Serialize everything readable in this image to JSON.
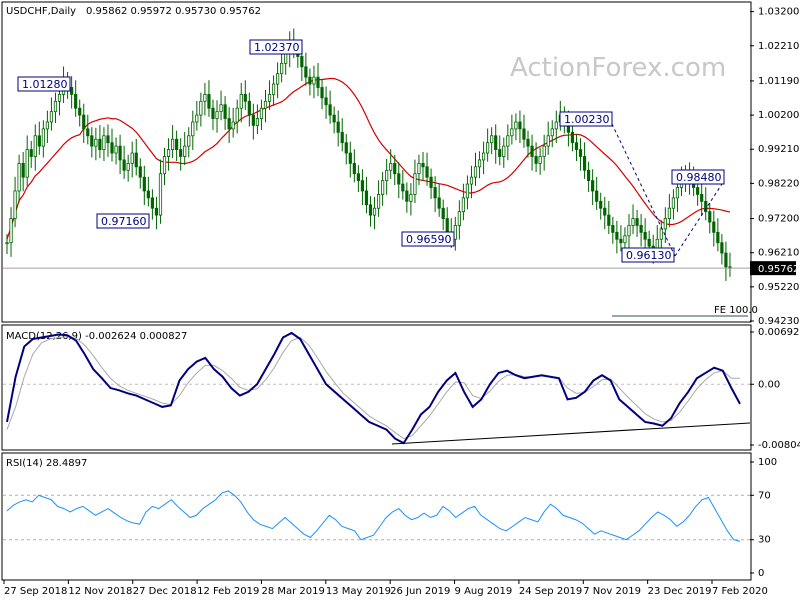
{
  "header": {
    "symbol": "USDCHF,Daily",
    "ohlc": "0.95862 0.95972 0.95730 0.95762"
  },
  "watermark": "ActionForex.com",
  "colors": {
    "candle": "#006400",
    "ma": "#d40000",
    "macd_main": "#000080",
    "macd_signal": "#a9a9a9",
    "rsi": "#1e90ff",
    "label_border": "#000080",
    "fe_line": "#2f4f4f",
    "price_box_bg": "#000000"
  },
  "chart_data": [
    {
      "type": "candlestick",
      "panel": "price",
      "title": "USDCHF,Daily 0.95862 0.95972 0.95730 0.95762",
      "ylim": [
        0.9423,
        1.0345
      ],
      "y_ticks": [
        "1.03200",
        "1.02210",
        "1.01190",
        "1.00200",
        "0.99210",
        "0.98220",
        "0.97200",
        "0.96210",
        "0.95220",
        "0.94230"
      ],
      "y_tick_values": [
        1.032,
        1.0221,
        1.0119,
        1.002,
        0.9921,
        0.9822,
        0.972,
        0.9621,
        0.9522,
        0.9423
      ],
      "current_price": "0.95762",
      "current_price_value": 0.95762,
      "close_series": [
        0.965,
        0.972,
        0.98,
        0.988,
        0.984,
        0.992,
        0.99,
        0.996,
        0.993,
        0.998,
        1.0,
        1.003,
        1.006,
        1.008,
        1.012,
        1.01,
        1.008,
        1.004,
        1.002,
        0.998,
        0.996,
        0.993,
        0.995,
        0.992,
        0.996,
        0.994,
        0.991,
        0.993,
        0.989,
        0.986,
        0.988,
        0.991,
        0.987,
        0.984,
        0.98,
        0.978,
        0.975,
        0.973,
        0.985,
        0.99,
        0.992,
        0.995,
        0.992,
        0.99,
        0.993,
        0.996,
        1.0,
        1.002,
        1.006,
        1.008,
        1.004,
        1.001,
        1.003,
        1.005,
        1.001,
        0.998,
        1.0,
        1.004,
        1.008,
        1.006,
        1.002,
        0.999,
        1.001,
        1.004,
        1.006,
        1.008,
        1.011,
        1.014,
        1.017,
        1.02,
        1.023,
        1.021,
        1.019,
        1.016,
        1.013,
        1.011,
        1.013,
        1.01,
        1.007,
        1.005,
        1.002,
        1.0,
        0.997,
        0.994,
        0.991,
        0.988,
        0.985,
        0.983,
        0.98,
        0.976,
        0.973,
        0.975,
        0.979,
        0.983,
        0.986,
        0.988,
        0.985,
        0.982,
        0.98,
        0.977,
        0.979,
        0.985,
        0.988,
        0.987,
        0.984,
        0.981,
        0.978,
        0.975,
        0.972,
        0.968,
        0.966,
        0.97,
        0.974,
        0.978,
        0.982,
        0.984,
        0.987,
        0.989,
        0.991,
        0.994,
        0.996,
        0.992,
        0.99,
        0.993,
        0.996,
        0.998,
        1.0,
        0.998,
        0.995,
        0.993,
        0.99,
        0.988,
        0.99,
        0.993,
        0.996,
        0.998,
        1.0,
        1.002,
        1.0,
        0.997,
        0.994,
        0.992,
        0.99,
        0.986,
        0.983,
        0.98,
        0.977,
        0.975,
        0.973,
        0.97,
        0.968,
        0.966,
        0.965,
        0.967,
        0.97,
        0.972,
        0.97,
        0.968,
        0.966,
        0.964,
        0.963,
        0.966,
        0.969,
        0.972,
        0.975,
        0.978,
        0.981,
        0.983,
        0.985,
        0.983,
        0.981,
        0.979,
        0.977,
        0.974,
        0.971,
        0.968,
        0.965,
        0.962,
        0.958,
        0.9576
      ],
      "annotations": [
        "1.01280",
        "0.97160",
        "1.02370",
        "0.96590",
        "1.00230",
        "0.96130",
        "0.98480"
      ],
      "fe_label": "FE 100.0",
      "x_ticks": [
        "27 Sep 2018",
        "12 Nov 2018",
        "27 Dec 2018",
        "12 Feb 2019",
        "28 Mar 2019",
        "13 May 2019",
        "26 Jun 2019",
        "9 Aug 2019",
        "24 Sep 2019",
        "7 Nov 2019",
        "23 Dec 2019",
        "7 Feb 2020"
      ]
    },
    {
      "type": "line",
      "panel": "macd",
      "title": "MACD(12,26,9) -0.002624 0.000827",
      "ylim": [
        -0.008049,
        0.006927
      ],
      "y_ticks": [
        "0.006927",
        "0.00",
        "-0.008049"
      ],
      "y_tick_values": [
        0.006927,
        0,
        -0.008049
      ],
      "series": [
        {
          "values": [
            -0.005,
            0.001,
            0.005,
            0.006,
            0.0062,
            0.0064,
            0.0066,
            0.0065,
            0.0058,
            0.004,
            0.002,
            0.0008,
            -0.0005,
            -0.0008,
            -0.0012,
            -0.0015,
            -0.002,
            -0.0025,
            -0.003,
            -0.0028,
            0.0005,
            0.002,
            0.003,
            0.0035,
            0.002,
            0.001,
            -0.0005,
            -0.0015,
            -0.001,
            0.0,
            0.002,
            0.004,
            0.0062,
            0.0068,
            0.006,
            0.004,
            0.002,
            0.0,
            -0.001,
            -0.002,
            -0.003,
            -0.004,
            -0.005,
            -0.0055,
            -0.006,
            -0.0072,
            -0.0078,
            -0.006,
            -0.004,
            -0.003,
            -0.001,
            0.0005,
            0.0015,
            -0.001,
            -0.003,
            -0.002,
            0.0,
            0.0015,
            0.0018,
            0.0012,
            0.0008,
            0.001,
            0.0012,
            0.001,
            0.0008,
            -0.002,
            -0.0018,
            -0.001,
            0.0005,
            0.0012,
            0.0005,
            -0.002,
            -0.003,
            -0.004,
            -0.005,
            -0.0052,
            -0.0055,
            -0.0045,
            -0.0025,
            -0.001,
            0.0008,
            0.0015,
            0.0022,
            0.0018,
            -0.0005,
            -0.0026
          ]
        },
        {
          "values": [
            -0.006,
            -0.003,
            0.001,
            0.004,
            0.0055,
            0.006,
            0.0062,
            0.0063,
            0.0061,
            0.0052,
            0.0038,
            0.0022,
            0.0008,
            -0.0002,
            -0.0008,
            -0.0012,
            -0.0016,
            -0.002,
            -0.0025,
            -0.0027,
            -0.0015,
            0.0002,
            0.0015,
            0.0025,
            0.0025,
            0.0018,
            0.0008,
            -0.0004,
            -0.0008,
            -0.0006,
            0.0006,
            0.0022,
            0.0042,
            0.0058,
            0.0062,
            0.0052,
            0.0035,
            0.0017,
            0.0002,
            -0.0012,
            -0.0022,
            -0.0032,
            -0.0042,
            -0.0049,
            -0.0055,
            -0.0064,
            -0.0072,
            -0.0068,
            -0.0055,
            -0.0042,
            -0.0026,
            -0.001,
            0.0003,
            0.0002,
            -0.0015,
            -0.0019,
            -0.0009,
            0.0004,
            0.0012,
            0.0013,
            0.001,
            0.001,
            0.0011,
            0.001,
            0.0009,
            -0.0005,
            -0.0012,
            -0.0011,
            -0.0003,
            0.0006,
            0.0007,
            -0.0005,
            -0.0017,
            -0.0028,
            -0.0039,
            -0.0046,
            -0.005,
            -0.0048,
            -0.0037,
            -0.0022,
            -0.0006,
            0.0006,
            0.0015,
            0.0018,
            0.0008,
            0.0008
          ]
        }
      ]
    },
    {
      "type": "line",
      "panel": "rsi",
      "title": "RSI(14) 28.4897",
      "ylim": [
        0,
        100
      ],
      "y_ticks": [
        "100",
        "70",
        "30",
        "0"
      ],
      "y_tick_values": [
        100,
        70,
        30,
        0
      ],
      "series": [
        {
          "values": [
            56,
            61,
            64,
            66,
            64,
            70,
            68,
            66,
            60,
            58,
            55,
            58,
            60,
            56,
            52,
            55,
            58,
            54,
            50,
            47,
            45,
            44,
            55,
            60,
            58,
            62,
            66,
            60,
            55,
            50,
            52,
            58,
            62,
            66,
            72,
            74,
            70,
            64,
            55,
            48,
            44,
            42,
            40,
            45,
            50,
            45,
            40,
            35,
            32,
            38,
            45,
            52,
            48,
            42,
            40,
            38,
            30,
            32,
            34,
            42,
            50,
            55,
            58,
            52,
            48,
            50,
            54,
            50,
            52,
            60,
            56,
            50,
            54,
            58,
            60,
            52,
            48,
            44,
            40,
            38,
            42,
            46,
            50,
            48,
            46,
            55,
            62,
            58,
            52,
            50,
            48,
            45,
            40,
            35,
            38,
            36,
            34,
            32,
            30,
            34,
            38,
            44,
            50,
            55,
            52,
            48,
            42,
            46,
            52,
            60,
            66,
            68,
            58,
            48,
            38,
            30,
            28.5
          ]
        }
      ]
    }
  ]
}
